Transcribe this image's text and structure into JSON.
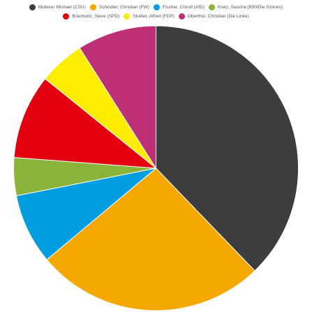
{
  "chart_data": {
    "type": "pie",
    "title": "",
    "legend_position": "top",
    "start_angle_deg": 0,
    "direction": "clockwise",
    "slices": [
      {
        "label": "Multerer Michael (CSU)",
        "value": 37.8,
        "color": "#3d3d3d"
      },
      {
        "label": "Schindler, Christian (FW)",
        "value": 26.1,
        "color": "#f5a800"
      },
      {
        "label": "Fischer, Christl (AfD)",
        "value": 8.0,
        "color": "#009ee0"
      },
      {
        "label": "Kretz, Sascha (B90/Die Grünen)",
        "value": 4.3,
        "color": "#8ab33a"
      },
      {
        "label": "Brachwitz, Steve (SPD)",
        "value": 9.6,
        "color": "#e3000f"
      },
      {
        "label": "Stuiber, Alfred (FDP)",
        "value": 5.2,
        "color": "#ffed00"
      },
      {
        "label": "Oberthür, Christian (Die Linke)",
        "value": 9.0,
        "color": "#be3075"
      }
    ]
  }
}
